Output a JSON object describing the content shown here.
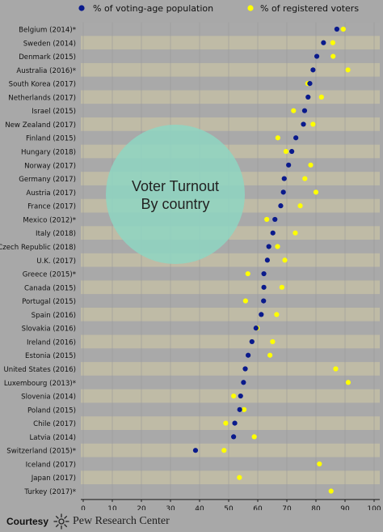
{
  "chart_data": {
    "type": "scatter",
    "title": "Voter Turnout\nBy country",
    "series": [
      {
        "name": "% of voting-age population",
        "color": "#0a1a8c"
      },
      {
        "name": "% of registered voters",
        "color": "#ffff00"
      }
    ],
    "rows": [
      {
        "label": "Belgium (2014)*",
        "vap": 87.2,
        "rv": 89.4
      },
      {
        "label": "Sweden (2014)",
        "vap": 82.6,
        "rv": 85.8
      },
      {
        "label": "Denmark (2015)",
        "vap": 80.3,
        "rv": 85.9
      },
      {
        "label": "Australia (2016)*",
        "vap": 79.0,
        "rv": 91.0
      },
      {
        "label": "South Korea (2017)",
        "vap": 77.9,
        "rv": 77.2
      },
      {
        "label": "Netherlands (2017)",
        "vap": 77.3,
        "rv": 81.9
      },
      {
        "label": "Israel (2015)",
        "vap": 76.1,
        "rv": 72.3
      },
      {
        "label": "New Zealand (2017)",
        "vap": 75.7,
        "rv": 79.0
      },
      {
        "label": "Finland (2015)",
        "vap": 73.1,
        "rv": 66.9
      },
      {
        "label": "Hungary (2018)",
        "vap": 71.7,
        "rv": 69.7
      },
      {
        "label": "Norway (2017)",
        "vap": 70.6,
        "rv": 78.2
      },
      {
        "label": "Germany (2017)",
        "vap": 69.1,
        "rv": 76.2
      },
      {
        "label": "Austria (2017)",
        "vap": 68.8,
        "rv": 80.0
      },
      {
        "label": "France (2017)",
        "vap": 67.9,
        "rv": 74.6
      },
      {
        "label": "Mexico (2012)*",
        "vap": 65.9,
        "rv": 63.1
      },
      {
        "label": "Italy (2018)",
        "vap": 65.2,
        "rv": 72.9
      },
      {
        "label": "Czech Republic (2018)",
        "vap": 63.8,
        "rv": 66.8
      },
      {
        "label": "U.K. (2017)",
        "vap": 63.3,
        "rv": 69.3
      },
      {
        "label": "Greece (2015)*",
        "vap": 62.1,
        "rv": 56.6
      },
      {
        "label": "Canada (2015)",
        "vap": 62.1,
        "rv": 68.3
      },
      {
        "label": "Portugal (2015)",
        "vap": 62.0,
        "rv": 55.8
      },
      {
        "label": "Spain (2016)",
        "vap": 61.2,
        "rv": 66.5
      },
      {
        "label": "Slovakia (2016)",
        "vap": 59.4,
        "rv": 59.8
      },
      {
        "label": "Ireland (2016)",
        "vap": 58.0,
        "rv": 65.1
      },
      {
        "label": "Estonia (2015)",
        "vap": 56.7,
        "rv": 64.2
      },
      {
        "label": "United States (2016)",
        "vap": 55.7,
        "rv": 86.8
      },
      {
        "label": "Luxembourg (2013)*",
        "vap": 55.1,
        "rv": 91.1
      },
      {
        "label": "Slovenia (2014)",
        "vap": 54.1,
        "rv": 51.7
      },
      {
        "label": "Poland (2015)",
        "vap": 53.8,
        "rv": 55.3
      },
      {
        "label": "Chile (2017)",
        "vap": 52.1,
        "rv": 49.0
      },
      {
        "label": "Latvia (2014)",
        "vap": 51.7,
        "rv": 58.8
      },
      {
        "label": "Switzerland (2015)*",
        "vap": 38.6,
        "rv": 48.4
      },
      {
        "label": "Iceland (2017)",
        "vap": null,
        "rv": 81.2
      },
      {
        "label": "Japan (2017)",
        "vap": null,
        "rv": 53.7
      },
      {
        "label": "Turkey (2017)*",
        "vap": null,
        "rv": 85.2
      }
    ],
    "x_ticks": [
      0,
      10,
      20,
      30,
      40,
      50,
      60,
      70,
      80,
      90,
      100
    ],
    "xlim": [
      0,
      100
    ],
    "grid": true,
    "legend_position": "top",
    "colors": {
      "band_dark": "#bfbba6",
      "band_light": "#a9a9a9",
      "circle": "#8ed6c2",
      "axis": "#1a1a1a"
    }
  },
  "footer": {
    "courtesy": "Courtesy",
    "source": "Pew Research Center",
    "logo_icon": "pew-sunburst-icon"
  }
}
